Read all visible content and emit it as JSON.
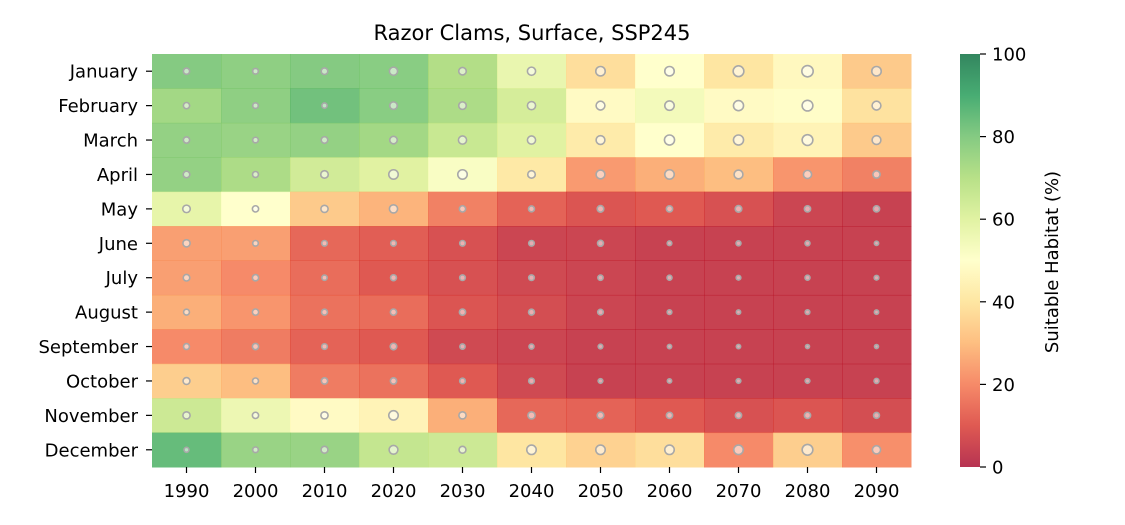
{
  "chart_data": {
    "type": "heatmap",
    "title": "Razor Clams, Surface, SSP245",
    "xlabel": "",
    "ylabel": "",
    "colorbar_label": "Suitable Habitat (%)",
    "colorbar_range": [
      0,
      100
    ],
    "colorbar_ticks": [
      "0",
      "20",
      "40",
      "60",
      "80",
      "100"
    ],
    "colormap": "RdYlGn",
    "x_categories": [
      "1990",
      "2000",
      "2010",
      "2020",
      "2030",
      "2040",
      "2050",
      "2060",
      "2070",
      "2080",
      "2090"
    ],
    "y_categories": [
      "January",
      "February",
      "March",
      "April",
      "May",
      "June",
      "July",
      "August",
      "September",
      "October",
      "November",
      "December"
    ],
    "values": [
      [
        80,
        78,
        80,
        79,
        71,
        57,
        38,
        50,
        40,
        47,
        33
      ],
      [
        74,
        78,
        83,
        79,
        72,
        63,
        48,
        54,
        48,
        49,
        39
      ],
      [
        77,
        76,
        77,
        74,
        66,
        60,
        42,
        50,
        42,
        45,
        33
      ],
      [
        77,
        72,
        64,
        60,
        52,
        41,
        23,
        27,
        30,
        22,
        18
      ],
      [
        58,
        50,
        33,
        28,
        18,
        12,
        9,
        10,
        8,
        5,
        4
      ],
      [
        24,
        24,
        13,
        11,
        8,
        5,
        5,
        4,
        4,
        4,
        4
      ],
      [
        24,
        20,
        14,
        10,
        8,
        6,
        5,
        4,
        4,
        4,
        4
      ],
      [
        27,
        22,
        15,
        14,
        9,
        7,
        5,
        4,
        4,
        4,
        4
      ],
      [
        20,
        17,
        12,
        10,
        6,
        5,
        4,
        4,
        4,
        4,
        4
      ],
      [
        34,
        30,
        17,
        15,
        10,
        6,
        4,
        4,
        4,
        4,
        4
      ],
      [
        65,
        56,
        48,
        45,
        27,
        13,
        12,
        10,
        8,
        9,
        7
      ],
      [
        85,
        76,
        76,
        67,
        65,
        40,
        35,
        38,
        20,
        34,
        21
      ]
    ],
    "marker_sizes": [
      [
        1.2,
        1.0,
        1.3,
        1.8,
        1.6,
        1.8,
        2.2,
        2.2,
        2.6,
        2.8,
        2.2
      ],
      [
        1.2,
        1.0,
        0.9,
        1.6,
        1.6,
        1.8,
        2.0,
        2.2,
        2.4,
        2.6,
        2.0
      ],
      [
        1.2,
        1.0,
        1.3,
        1.6,
        1.8,
        1.8,
        2.0,
        2.4,
        2.4,
        2.6,
        2.0
      ],
      [
        1.3,
        1.1,
        1.6,
        2.2,
        2.2,
        1.6,
        2.0,
        2.2,
        2.0,
        1.8,
        1.5
      ],
      [
        1.6,
        1.2,
        1.5,
        1.8,
        1.2,
        1.1,
        1.3,
        1.2,
        1.3,
        1.2,
        1.2
      ],
      [
        1.5,
        1.0,
        1.0,
        1.0,
        1.0,
        1.0,
        1.1,
        0.7,
        0.8,
        0.8,
        0.6
      ],
      [
        1.3,
        1.2,
        0.9,
        1.1,
        1.0,
        1.0,
        0.9,
        0.8,
        0.7,
        0.8,
        0.7
      ],
      [
        1.1,
        1.2,
        1.1,
        1.2,
        1.2,
        1.1,
        1.0,
        0.7,
        0.6,
        0.7,
        0.6
      ],
      [
        1.1,
        1.2,
        1.0,
        1.3,
        0.9,
        0.8,
        0.7,
        0.6,
        0.6,
        0.5,
        0.5
      ],
      [
        1.4,
        1.1,
        1.2,
        1.2,
        1.0,
        1.0,
        0.7,
        0.6,
        0.7,
        0.7,
        0.8
      ],
      [
        1.5,
        1.2,
        1.5,
        2.2,
        1.5,
        1.5,
        1.3,
        1.2,
        1.2,
        1.2,
        1.1
      ],
      [
        0.8,
        1.0,
        1.4,
        2.0,
        1.4,
        2.2,
        2.2,
        2.2,
        2.2,
        2.6,
        1.8
      ]
    ]
  }
}
